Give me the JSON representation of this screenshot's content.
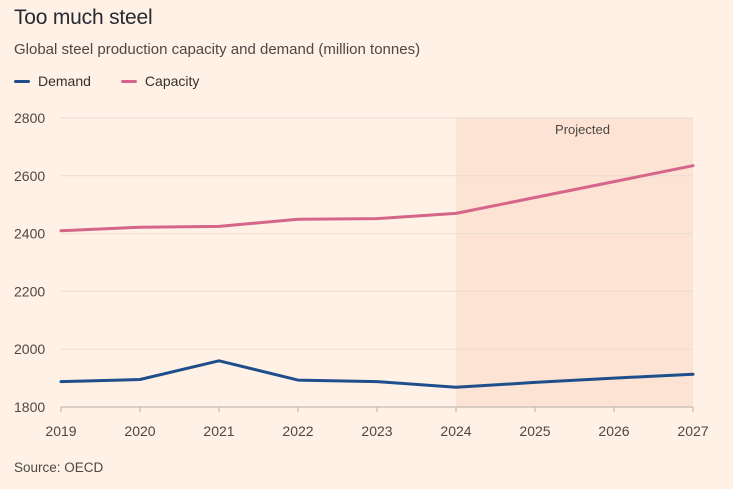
{
  "title": "Too much steel",
  "subtitle": "Global steel production capacity and demand (million tonnes)",
  "source": "Source: OECD",
  "colors": {
    "background": "#fff1e5",
    "demand": "#1e4e8c",
    "capacity": "#d6658a",
    "projected_band": "#fde3d3",
    "grid": "#e9dcd2",
    "axis": "#b8aea6"
  },
  "chart_data": {
    "type": "line",
    "title": "Too much steel",
    "subtitle": "Global steel production capacity and demand (million tonnes)",
    "x": [
      2019,
      2020,
      2021,
      2022,
      2023,
      2024,
      2025,
      2026,
      2027
    ],
    "series": [
      {
        "name": "Demand",
        "color": "#1e4e8c",
        "values": [
          1888,
          1895,
          1960,
          1893,
          1888,
          1868,
          1885,
          1900,
          1913
        ]
      },
      {
        "name": "Capacity",
        "color": "#d6658a",
        "values": [
          2410,
          2422,
          2425,
          2450,
          2452,
          2470,
          2525,
          2580,
          2635
        ]
      }
    ],
    "ylim": [
      1800,
      2800
    ],
    "yticks": [
      1800,
      2000,
      2200,
      2400,
      2600,
      2800
    ],
    "xticks": [
      2019,
      2020,
      2021,
      2022,
      2023,
      2024,
      2025,
      2026,
      2027
    ],
    "grid": true,
    "legend_position": "top-left",
    "annotation": {
      "label": "Projected",
      "from": 2024,
      "to": 2027
    }
  }
}
